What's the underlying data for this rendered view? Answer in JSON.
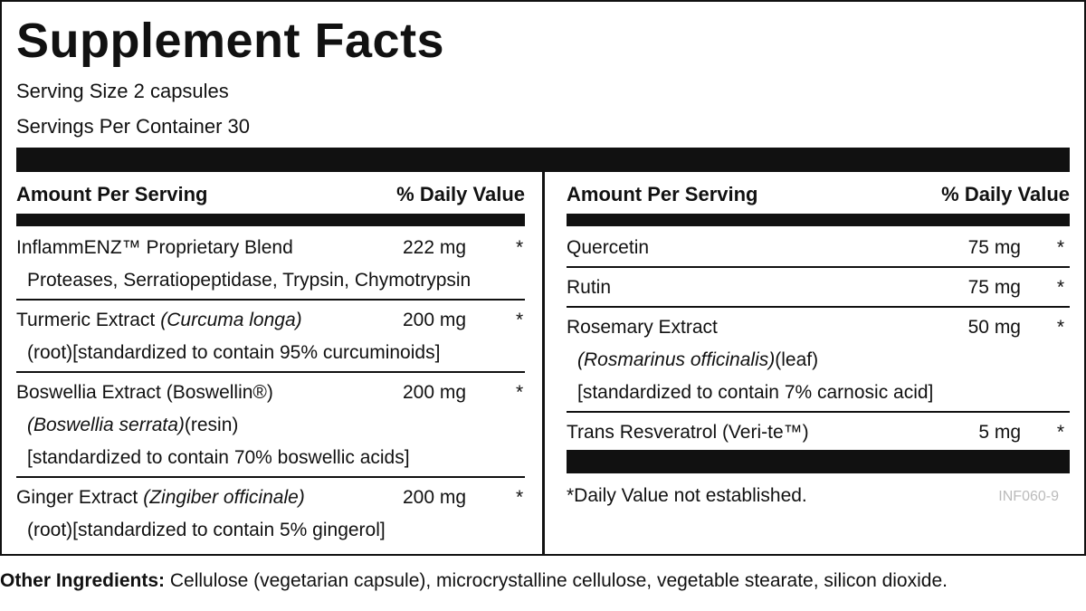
{
  "title": "Supplement Facts",
  "serving_size": "Serving Size 2 capsules",
  "servings_per_container": "Servings Per Container 30",
  "columns": [
    {
      "header": {
        "amount": "Amount Per Serving",
        "dv": "% Daily Value"
      },
      "rows": [
        {
          "name": "InflammENZ™ Proprietary Blend",
          "amount": "222 mg",
          "dv": "*",
          "details": [
            {
              "text": "Proteases, Serratiopeptidase, Trypsin, Chymotrypsin"
            }
          ]
        },
        {
          "name": "Turmeric Extract",
          "name_italic": "(Curcuma longa)",
          "amount": "200 mg",
          "dv": "*",
          "details": [
            {
              "text": "(root)[standardized to contain 95% curcuminoids]"
            }
          ]
        },
        {
          "name": "Boswellia Extract (Boswellin®)",
          "amount": "200 mg",
          "dv": "*",
          "details": [
            {
              "italic": "(Boswellia serrata)",
              "text": "(resin)"
            },
            {
              "text": "[standardized to contain 70% boswellic acids]"
            }
          ]
        },
        {
          "name": "Ginger Extract",
          "name_italic": "(Zingiber officinale)",
          "amount": "200 mg",
          "dv": "*",
          "details": [
            {
              "text": "(root)[standardized to contain 5% gingerol]"
            }
          ]
        }
      ]
    },
    {
      "header": {
        "amount": "Amount Per Serving",
        "dv": "% Daily Value"
      },
      "rows": [
        {
          "name": "Quercetin",
          "amount": "75 mg",
          "dv": "*",
          "details": []
        },
        {
          "name": "Rutin",
          "amount": "75 mg",
          "dv": "*",
          "details": []
        },
        {
          "name": "Rosemary Extract",
          "amount": "50 mg",
          "dv": "*",
          "details": [
            {
              "italic": "(Rosmarinus officinalis)",
              "text": "(leaf)"
            },
            {
              "text": "[standardized to contain 7% carnosic acid]"
            }
          ]
        },
        {
          "name": "Trans Resveratrol (Veri-te™)",
          "amount": "5 mg",
          "dv": "*",
          "details": []
        }
      ]
    }
  ],
  "footnote": "*Daily Value not established.",
  "code": "INF060-9",
  "other_ingredients": {
    "label": "Other Ingredients:",
    "text": "Cellulose (vegetarian capsule), microcrystalline cellulose, vegetable stearate, silicon dioxide."
  }
}
